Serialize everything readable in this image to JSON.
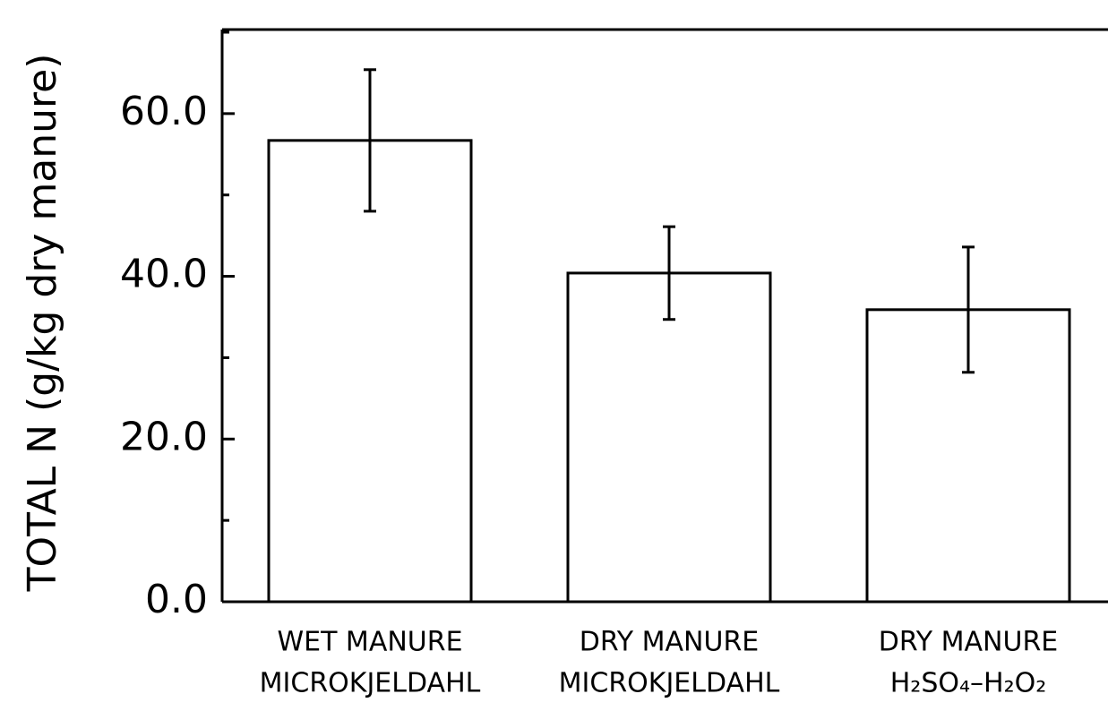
{
  "chart_data": {
    "type": "bar",
    "ylabel": "TOTAL N (g/kg dry manure)",
    "categories": [
      [
        "WET MANURE",
        "MICROKJELDAHL"
      ],
      [
        "DRY MANURE",
        "MICROKJELDAHL"
      ],
      [
        "DRY MANURE",
        "H₂SO₄–H₂O₂"
      ]
    ],
    "values": [
      56.7,
      40.4,
      35.9
    ],
    "errors": [
      8.7,
      5.7,
      7.7
    ],
    "color": "#ffffff",
    "ylim": [
      0,
      70
    ],
    "yticks": [
      {
        "value": 0,
        "label": "0.0"
      },
      {
        "value": 20,
        "label": "20.0"
      },
      {
        "value": 40,
        "label": "40.0"
      },
      {
        "value": 60,
        "label": "60.0"
      }
    ],
    "yminor": [
      10,
      30,
      50,
      70
    ]
  }
}
